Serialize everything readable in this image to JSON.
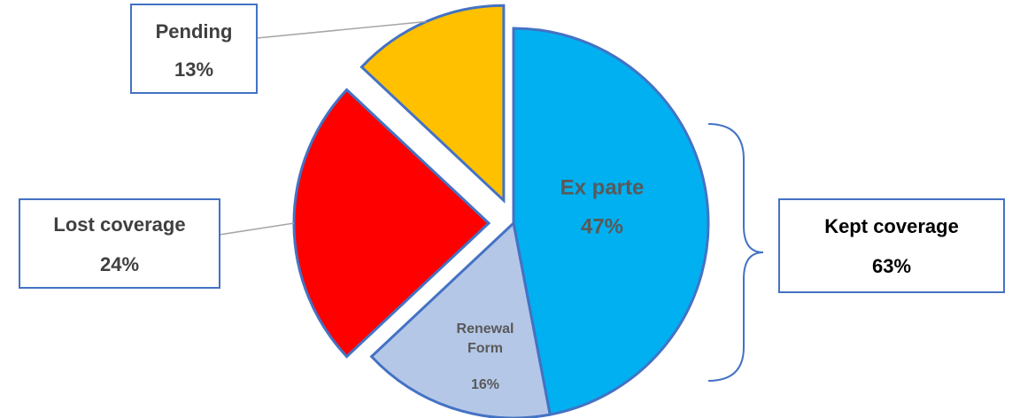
{
  "chart_data": {
    "type": "pie",
    "categories": [
      "Ex parte",
      "Renewal Form",
      "Lost coverage",
      "Pending"
    ],
    "values": [
      47,
      16,
      24,
      13
    ],
    "value_labels": [
      "47%",
      "16%",
      "24%",
      "13%"
    ],
    "colors": [
      "#00b0f0",
      "#b4c7e7",
      "#ff0000",
      "#ffc000"
    ],
    "explode": [
      false,
      false,
      true,
      true
    ],
    "annotation": {
      "text": "Kept coverage",
      "value": 63,
      "value_label": "63%"
    }
  }
}
